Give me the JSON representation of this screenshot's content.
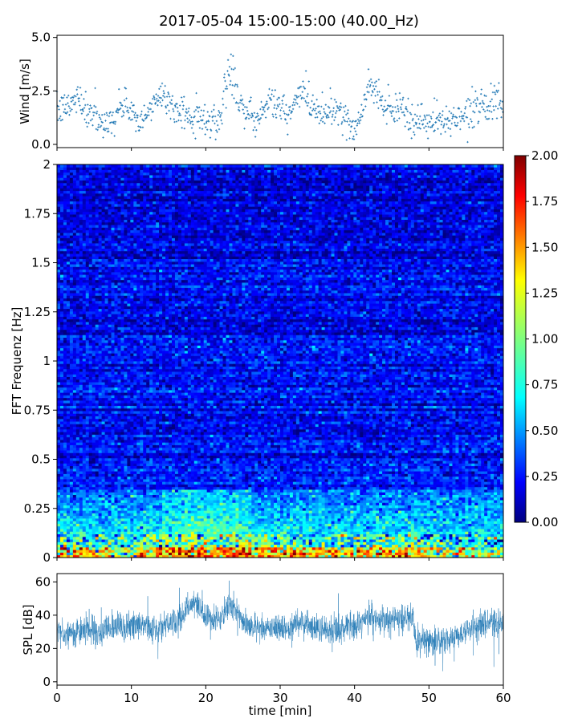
{
  "figure": {
    "title": "2017-05-04 15:00-15:00 (40.00_Hz)"
  },
  "chart_data": [
    {
      "type": "scatter",
      "panel": "wind",
      "ylabel": "Wind [m/s]",
      "xlabel": "",
      "xlim": [
        0,
        60
      ],
      "ylim": [
        -0.15,
        5.1
      ],
      "yticks": [
        0.0,
        2.5,
        5.0
      ],
      "ytick_labels": [
        "0.0",
        "2.5",
        "5.0"
      ],
      "xticks": [
        0,
        10,
        20,
        30,
        40,
        50,
        60
      ],
      "marker_color": "#1f77b4",
      "segments": [
        {
          "t": [
            0,
            60
          ],
          "mean_profile": [
            [
              0,
              1.5
            ],
            [
              2,
              1.9
            ],
            [
              3,
              2.3
            ],
            [
              4,
              1.4
            ],
            [
              5,
              1.6
            ],
            [
              6,
              0.9
            ],
            [
              7,
              1.0
            ],
            [
              8,
              1.4
            ],
            [
              9,
              1.8
            ],
            [
              10,
              1.7
            ],
            [
              11,
              0.8
            ],
            [
              12,
              1.2
            ],
            [
              13,
              2.0
            ],
            [
              14,
              2.4
            ],
            [
              15,
              2.1
            ],
            [
              16,
              1.4
            ],
            [
              17,
              1.7
            ],
            [
              18,
              1.0
            ],
            [
              19,
              1.3
            ],
            [
              20,
              1.2
            ],
            [
              21,
              1.0
            ],
            [
              22,
              1.3
            ],
            [
              23,
              3.2
            ],
            [
              24,
              2.6
            ],
            [
              25,
              1.7
            ],
            [
              26,
              1.3
            ],
            [
              27,
              1.1
            ],
            [
              28,
              1.9
            ],
            [
              29,
              2.0
            ],
            [
              30,
              1.8
            ],
            [
              31,
              1.2
            ],
            [
              32,
              2.0
            ],
            [
              33,
              2.4
            ],
            [
              34,
              2.0
            ],
            [
              35,
              1.6
            ],
            [
              36,
              1.4
            ],
            [
              37,
              1.7
            ],
            [
              38,
              1.6
            ],
            [
              39,
              0.9
            ],
            [
              40,
              0.8
            ],
            [
              41,
              1.6
            ],
            [
              42,
              2.7
            ],
            [
              43,
              2.4
            ],
            [
              44,
              1.8
            ],
            [
              45,
              1.5
            ],
            [
              46,
              1.8
            ],
            [
              47,
              1.4
            ],
            [
              48,
              1.0
            ],
            [
              49,
              1.2
            ],
            [
              50,
              0.9
            ],
            [
              51,
              1.1
            ],
            [
              52,
              1.0
            ],
            [
              53,
              1.2
            ],
            [
              54,
              1.3
            ],
            [
              55,
              1.4
            ],
            [
              56,
              1.7
            ],
            [
              57,
              2.0
            ],
            [
              58,
              1.8
            ],
            [
              59,
              1.9
            ],
            [
              60,
              1.6
            ]
          ]
        }
      ]
    },
    {
      "type": "heatmap",
      "panel": "spectrogram",
      "ylabel": "FFT Frequenz [Hz]",
      "xlabel": "",
      "xlim": [
        0,
        60
      ],
      "ylim": [
        0,
        2
      ],
      "yticks": [
        0,
        0.25,
        0.5,
        0.75,
        1,
        1.25,
        1.5,
        1.75,
        2
      ],
      "ytick_labels": [
        "0",
        "0.25",
        "0.5",
        "0.75",
        "1",
        "1.25",
        "1.5",
        "1.75",
        "2"
      ],
      "colormap": "jet",
      "colorbar": {
        "vmin": 0.0,
        "vmax": 2.0,
        "ticks": [
          0.0,
          0.25,
          0.5,
          0.75,
          1.0,
          1.25,
          1.5,
          1.75,
          2.0
        ],
        "tick_labels": [
          "0.00",
          "0.25",
          "0.50",
          "0.75",
          "1.00",
          "1.25",
          "1.50",
          "1.75",
          "2.00"
        ]
      },
      "low_freq_energy_profile": [
        [
          0,
          1.3
        ],
        [
          5,
          1.2
        ],
        [
          10,
          1.1
        ],
        [
          12,
          1.4
        ],
        [
          15,
          1.5
        ],
        [
          18,
          1.6
        ],
        [
          20,
          1.5
        ],
        [
          22,
          1.4
        ],
        [
          25,
          1.6
        ],
        [
          28,
          1.5
        ],
        [
          30,
          1.3
        ],
        [
          35,
          1.2
        ],
        [
          40,
          1.3
        ],
        [
          45,
          1.4
        ],
        [
          48,
          1.5
        ],
        [
          50,
          1.2
        ],
        [
          55,
          1.1
        ],
        [
          60,
          1.0
        ]
      ]
    },
    {
      "type": "line",
      "panel": "spl",
      "ylabel": "SPL [dB]",
      "xlabel": "time [min]",
      "xlim": [
        0,
        60
      ],
      "ylim": [
        -2,
        65
      ],
      "yticks": [
        0,
        20,
        40,
        60
      ],
      "ytick_labels": [
        "0",
        "20",
        "40",
        "60"
      ],
      "xticks": [
        0,
        10,
        20,
        30,
        40,
        50,
        60
      ],
      "xtick_labels": [
        "0",
        "10",
        "20",
        "30",
        "40",
        "50",
        "60"
      ],
      "line_color": "#1f77b4",
      "mean_profile": [
        [
          0,
          30
        ],
        [
          2,
          29
        ],
        [
          4,
          31
        ],
        [
          6,
          30
        ],
        [
          8,
          33
        ],
        [
          10,
          34
        ],
        [
          12,
          33
        ],
        [
          14,
          34
        ],
        [
          16,
          36
        ],
        [
          17,
          40
        ],
        [
          18,
          48
        ],
        [
          19,
          44
        ],
        [
          20,
          38
        ],
        [
          21,
          36
        ],
        [
          22,
          38
        ],
        [
          23,
          46
        ],
        [
          24,
          42
        ],
        [
          25,
          37
        ],
        [
          26,
          33
        ],
        [
          28,
          32
        ],
        [
          30,
          31
        ],
        [
          32,
          33
        ],
        [
          33,
          37
        ],
        [
          34,
          33
        ],
        [
          36,
          31
        ],
        [
          38,
          31
        ],
        [
          40,
          34
        ],
        [
          42,
          38
        ],
        [
          44,
          37
        ],
        [
          46,
          38
        ],
        [
          47.9,
          40
        ],
        [
          48.1,
          25
        ],
        [
          50,
          24
        ],
        [
          52,
          25
        ],
        [
          54,
          28
        ],
        [
          56,
          33
        ],
        [
          58,
          37
        ],
        [
          60,
          35
        ]
      ]
    }
  ]
}
